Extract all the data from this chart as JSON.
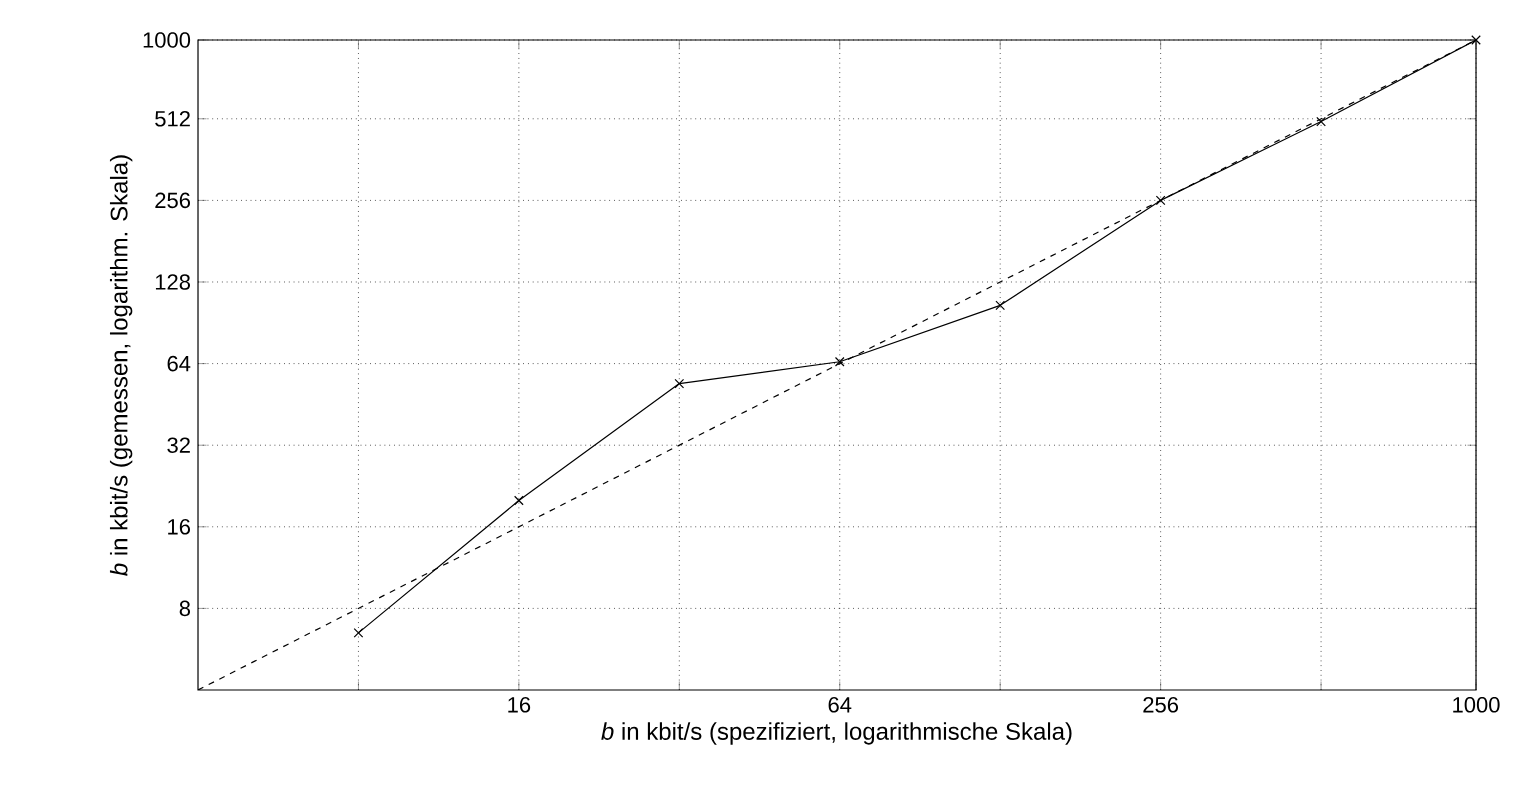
{
  "chart_data": {
    "type": "line",
    "xlabel": "*b* in kbit/s (spezifiziert, logarithmische Skala)",
    "ylabel": "*b* in kbit/s (gemessen, logarithm. Skala)",
    "log": "xy",
    "grid": true,
    "xlim": [
      4,
      1000
    ],
    "ylim": [
      4,
      1000
    ],
    "xticks": [
      {
        "value": 8,
        "label": null
      },
      16,
      {
        "value": 32,
        "label": null
      },
      64,
      {
        "value": 128,
        "label": null
      },
      256,
      {
        "value": 512,
        "label": null
      },
      1000
    ],
    "yticks": [
      8,
      16,
      32,
      64,
      128,
      256,
      512,
      1000
    ],
    "series": [
      {
        "x": [
          8,
          16,
          32,
          64,
          128,
          256,
          512,
          1000
        ],
        "values": [
          6.5,
          20,
          54,
          65,
          105,
          256,
          500,
          1000
        ],
        "color": "#000000",
        "marker": "cross",
        "line_style": "solid"
      },
      {
        "x": [
          4,
          1000
        ],
        "values": [
          4,
          1000
        ],
        "color": "#000000",
        "marker": "none",
        "line_style": "dashed"
      }
    ]
  }
}
